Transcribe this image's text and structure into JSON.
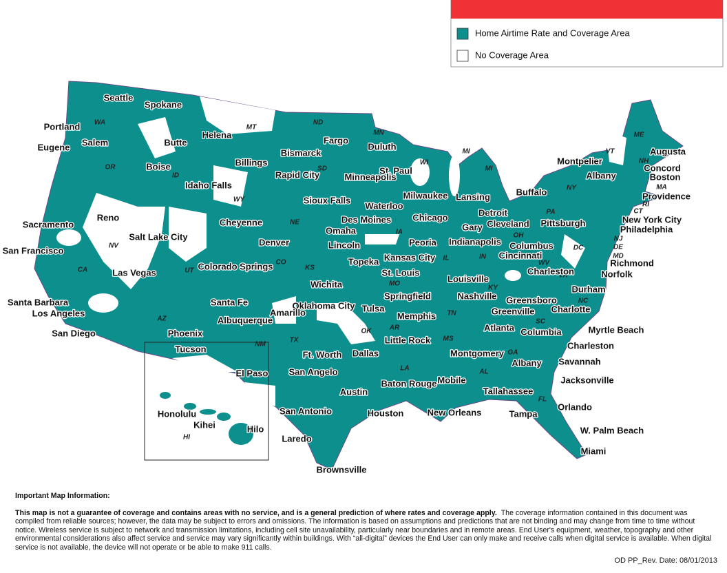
{
  "legend": {
    "items": [
      {
        "label": "Home Airtime Rate and Coverage Area",
        "color": "#0d8f8d"
      },
      {
        "label": "No Coverage Area",
        "color": "#ffffff"
      }
    ]
  },
  "cities": [
    "Seattle",
    "Spokane",
    "Portland",
    "Salem",
    "Eugene",
    "Helena",
    "Butte",
    "Boise",
    "Idaho Falls",
    "Billings",
    "Fargo",
    "Bismarck",
    "Duluth",
    "St. Paul",
    "Rapid City",
    "Minneapolis",
    "Sioux Falls",
    "Milwaukee",
    "Lansing",
    "Waterloo",
    "Cheyenne",
    "Des Moines",
    "Omaha",
    "Chicago",
    "Detroit",
    "Gary",
    "Cleveland",
    "Pittsburgh",
    "Buffalo",
    "Sacramento",
    "Reno",
    "Salt Lake City",
    "San Francisco",
    "Denver",
    "Lincoln",
    "Peoria",
    "Indianapolis",
    "Columbus",
    "Kansas City",
    "Topeka",
    "Cincinnati",
    "Charleston",
    "Colorado Springs",
    "Las Vegas",
    "St. Louis",
    "Louisville",
    "Richmond",
    "Norfolk",
    "Wichita",
    "Springfield",
    "Durham",
    "Santa Fe",
    "Oklahoma City",
    "Tulsa",
    "Nashville",
    "Greensboro",
    "Charlotte",
    "Greenville",
    "Santa Barbara",
    "Los Angeles",
    "Amarillo",
    "Albuquerque",
    "Memphis",
    "Phoenix",
    "Atlanta",
    "Columbia",
    "Myrtle Beach",
    "San Diego",
    "Little Rock",
    "Tucson",
    "Charleston",
    "Ft. Worth",
    "Dallas",
    "Montgomery",
    "Albany",
    "Savannah",
    "El Paso",
    "San Angelo",
    "Baton Rouge",
    "Mobile",
    "Jacksonville",
    "Tallahassee",
    "Austin",
    "San Antonio",
    "Houston",
    "New Orleans",
    "Orlando",
    "Tampa",
    "Honolulu",
    "Kihei",
    "Hilo",
    "W. Palm Beach",
    "Laredo",
    "Miami",
    "Brownsville",
    "Augusta",
    "Montpelier",
    "Concord",
    "Boston",
    "Albany",
    "Providence",
    "New York City",
    "Philadelphia"
  ],
  "states": [
    "WA",
    "MT",
    "OR",
    "ID",
    "ND",
    "MN",
    "MI",
    "WI",
    "SD",
    "MI",
    "WY",
    "NE",
    "IA",
    "PA",
    "NY",
    "NV",
    "OH",
    "CO",
    "KS",
    "IL",
    "IN",
    "WV",
    "UT",
    "CA",
    "MO",
    "KY",
    "VA",
    "NC",
    "TN",
    "SC",
    "AZ",
    "OK",
    "AR",
    "TX",
    "MS",
    "NM",
    "GA",
    "LA",
    "AL",
    "FL",
    "HI",
    "ME",
    "VT",
    "NH",
    "MA",
    "RI",
    "CT",
    "NJ",
    "DE",
    "MD",
    "DC"
  ],
  "footer": {
    "heading": "Important Map Information:",
    "lead": "This map is not a guarantee of coverage and contains areas with no service, and is a general prediction of where rates and coverage apply.",
    "body": "The coverage information contained in this document was compiled from reliable sources; however, the data may be subject to errors and omissions. The information is based on assumptions and predictions that are not binding and may change from time to time without notice.  Wireless service is subject to network and transmission limitations, including cell site unavailability, particularly near boundaries and in remote areas.  End User's equipment, weather, topography and other environmental considerations also affect service and service may vary significantly within buildings.  With “all-digital” devices the End User can only make and receive calls when digital service is available.  When digital service is not available, the device will not operate or be able to make 911 calls.",
    "revision": "OD PP_Rev. Date: 08/01/2013"
  }
}
